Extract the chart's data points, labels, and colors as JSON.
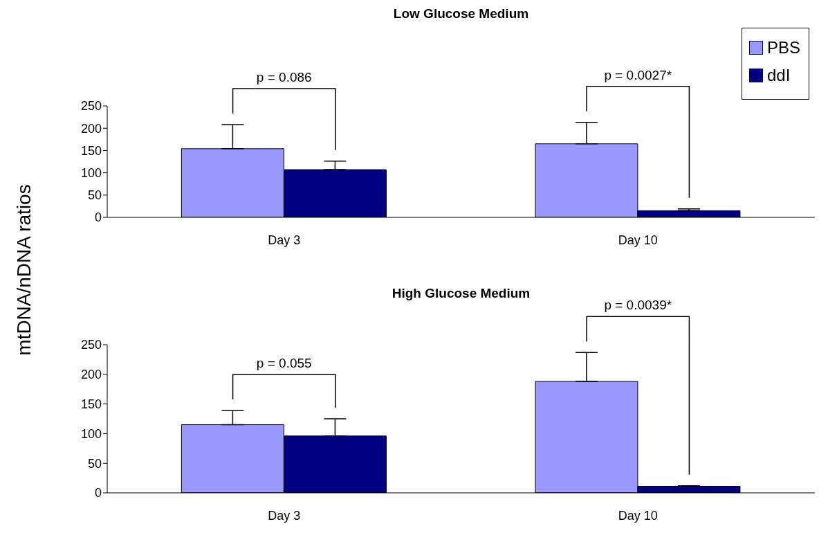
{
  "chart_data": [
    {
      "type": "bar",
      "title": "Low Glucose Medium",
      "ylabel": "mtDNA/nDNA ratios",
      "categories": [
        "Day 3",
        "Day 10"
      ],
      "legend": "top right",
      "ylim": [
        0,
        250
      ],
      "yticks": [
        0,
        50,
        100,
        150,
        200,
        250
      ],
      "series": [
        {
          "name": "PBS",
          "color": "#9999ff",
          "values": [
            154,
            165
          ],
          "errors": [
            [
              154,
              208
            ],
            [
              165,
              213
            ]
          ]
        },
        {
          "name": "ddI",
          "color": "#000080",
          "values": [
            107,
            15
          ],
          "errors": [
            [
              107,
              126
            ],
            [
              15,
              19
            ]
          ]
        }
      ],
      "annotations": [
        "p = 0.086",
        "p = 0.0027*"
      ]
    },
    {
      "type": "bar",
      "title": "High Glucose Medium",
      "categories": [
        "Day 3",
        "Day 10"
      ],
      "ylim": [
        0,
        250
      ],
      "yticks": [
        0,
        50,
        100,
        150,
        200,
        250
      ],
      "series": [
        {
          "color": "#9999ff",
          "values": [
            115,
            188
          ],
          "errors": [
            [
              115,
              139
            ],
            [
              188,
              237
            ]
          ]
        },
        {
          "color": "#000080",
          "values": [
            96,
            11
          ],
          "errors": [
            [
              96,
              125
            ],
            [
              11,
              12
            ]
          ]
        }
      ],
      "annotations": [
        "p = 0.055",
        "p = 0.0039*"
      ]
    }
  ]
}
